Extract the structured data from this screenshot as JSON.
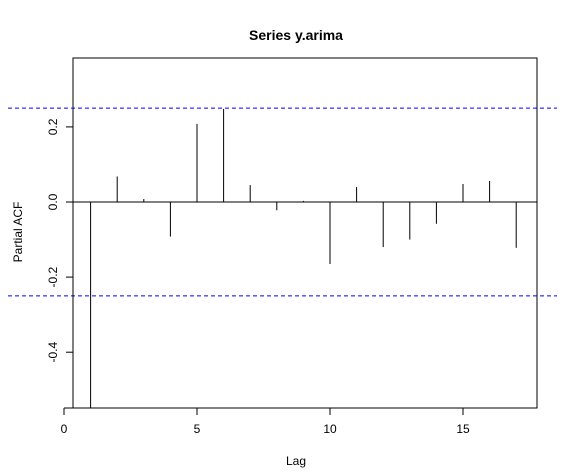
{
  "chart_data": {
    "type": "bar",
    "title": "Series  y.arima",
    "xlabel": "Lag",
    "ylabel": "Partial ACF",
    "xlim": [
      0,
      18
    ],
    "ylim": [
      -0.55,
      0.39
    ],
    "x_ticks": [
      0,
      5,
      10,
      15
    ],
    "x_tick_labels": [
      "0",
      "5",
      "10",
      "15"
    ],
    "y_ticks": [
      -0.4,
      -0.2,
      0.0,
      0.2
    ],
    "y_tick_labels": [
      "-0.4",
      "-0.2",
      "0.0",
      "0.2"
    ],
    "x": [
      1,
      2,
      3,
      4,
      5,
      6,
      7,
      8,
      9,
      10,
      11,
      12,
      13,
      14,
      15,
      16,
      17
    ],
    "values": [
      -0.55,
      0.068,
      0.008,
      -0.092,
      0.208,
      0.248,
      0.045,
      -0.022,
      0.003,
      -0.165,
      0.04,
      -0.12,
      -0.1,
      -0.058,
      0.048,
      0.056,
      -0.122
    ],
    "confidence_limits": [
      0.25,
      -0.25
    ],
    "colors": {
      "bars": "#000000",
      "confidence_lines": "#0000ff",
      "zero_line": "#000000",
      "frame": "#000000"
    }
  }
}
